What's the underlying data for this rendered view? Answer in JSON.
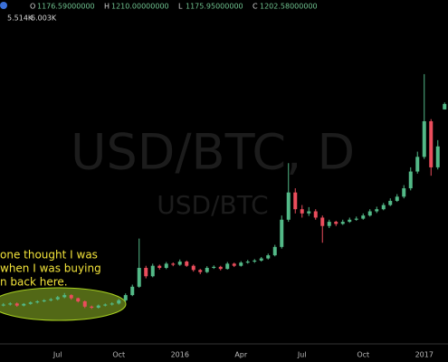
{
  "header": {
    "ohlc": [
      {
        "key": "O",
        "value": "1176.59000000"
      },
      {
        "key": "H",
        "value": "1210.00000000"
      },
      {
        "key": "L",
        "value": "1175.95000000"
      },
      {
        "key": "C",
        "value": "1202.58000000"
      }
    ],
    "volume": [
      "5.514K",
      "6.003K"
    ]
  },
  "chart_data": {
    "type": "candlestick",
    "watermark": "USD/BTC, D",
    "watermark_sub": "USD/BTC",
    "annotation": [
      "one thought I was",
      "when I was buying",
      "n back here."
    ],
    "up_color": "#53b987",
    "down_color": "#eb4d5c",
    "ylim": [
      57,
      1699
    ],
    "categories": [
      null,
      null,
      null,
      null,
      null,
      null,
      null,
      null,
      "Jul",
      null,
      null,
      null,
      null,
      null,
      null,
      null,
      null,
      "Oct",
      null,
      null,
      null,
      null,
      null,
      null,
      null,
      null,
      "2016",
      null,
      null,
      null,
      null,
      null,
      null,
      null,
      null,
      "Apr",
      null,
      null,
      null,
      null,
      null,
      null,
      null,
      null,
      "Jul",
      null,
      null,
      null,
      null,
      null,
      null,
      null,
      null,
      "Oct",
      null,
      null,
      null,
      null,
      null,
      null,
      null,
      null,
      "2017",
      null,
      null,
      null
    ],
    "open": [
      240,
      245,
      250,
      240,
      248,
      255,
      260,
      265,
      270,
      280,
      290,
      275,
      260,
      235,
      230,
      240,
      245,
      250,
      265,
      290,
      330,
      420,
      380,
      430,
      420,
      440,
      435,
      450,
      430,
      410,
      400,
      420,
      425,
      415,
      440,
      430,
      445,
      450,
      455,
      465,
      480,
      520,
      650,
      780,
      700,
      680,
      690,
      660,
      620,
      640,
      630,
      640,
      650,
      655,
      670,
      690,
      700,
      720,
      740,
      760,
      800,
      880,
      950,
      1120,
      900,
      1176.59
    ],
    "high": [
      252,
      256,
      255,
      252,
      260,
      265,
      270,
      276,
      286,
      300,
      294,
      278,
      264,
      240,
      245,
      250,
      256,
      272,
      298,
      340,
      560,
      430,
      440,
      436,
      448,
      446,
      460,
      455,
      436,
      415,
      428,
      432,
      430,
      448,
      445,
      452,
      458,
      462,
      472,
      488,
      530,
      670,
      920,
      800,
      720,
      710,
      700,
      670,
      650,
      645,
      650,
      660,
      665,
      680,
      700,
      712,
      730,
      752,
      772,
      815,
      900,
      975,
      1345,
      1130,
      1030,
      1210
    ],
    "low": [
      236,
      240,
      234,
      236,
      244,
      250,
      256,
      260,
      265,
      275,
      268,
      255,
      228,
      224,
      226,
      236,
      240,
      245,
      258,
      285,
      325,
      370,
      375,
      412,
      414,
      428,
      430,
      425,
      402,
      390,
      395,
      415,
      408,
      412,
      424,
      426,
      440,
      444,
      450,
      460,
      475,
      512,
      640,
      680,
      660,
      668,
      650,
      540,
      610,
      620,
      625,
      635,
      645,
      650,
      665,
      682,
      695,
      715,
      735,
      752,
      790,
      870,
      940,
      860,
      890,
      1175.95
    ],
    "close": [
      245,
      250,
      240,
      248,
      255,
      260,
      265,
      270,
      280,
      290,
      275,
      260,
      235,
      230,
      240,
      245,
      250,
      265,
      290,
      330,
      420,
      380,
      430,
      420,
      440,
      435,
      450,
      430,
      410,
      400,
      420,
      425,
      415,
      440,
      430,
      445,
      450,
      455,
      465,
      480,
      520,
      650,
      780,
      700,
      680,
      690,
      660,
      620,
      640,
      630,
      640,
      650,
      655,
      670,
      690,
      700,
      720,
      740,
      760,
      800,
      880,
      950,
      1120,
      900,
      1000,
      1202.58
    ]
  }
}
